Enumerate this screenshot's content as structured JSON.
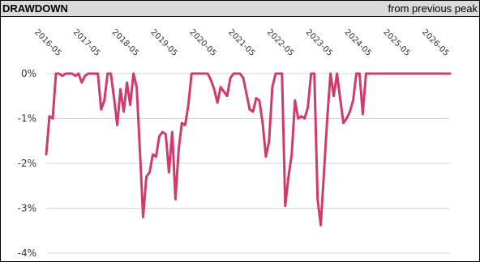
{
  "header": {
    "title": "DRAWDOWN",
    "subtitle": "from previous peak"
  },
  "colors": {
    "line": "#d03a6d",
    "header_bg": "#d9d9d9",
    "grid": "#d4d4d4"
  },
  "chart_data": {
    "type": "line",
    "title": "DRAWDOWN",
    "subtitle": "from previous peak",
    "xlabel": "",
    "ylabel": "",
    "x_start": "2016-05",
    "x_end": "2026-10",
    "x_ticks": [
      "2016-05",
      "2017-05",
      "2018-05",
      "2019-05",
      "2020-05",
      "2021-05",
      "2022-05",
      "2023-05",
      "2024-05",
      "2025-05",
      "2026-05"
    ],
    "ylim": [
      -4,
      0
    ],
    "y_ticks": [
      0,
      -1,
      -2,
      -3,
      -4
    ],
    "y_tick_labels": [
      "0%",
      "-1%",
      "-2%",
      "-3%",
      "-4%"
    ],
    "grid": true,
    "legend": "none",
    "series": [
      {
        "x": [
          "2016-05",
          "2016-06",
          "2016-07",
          "2016-08",
          "2016-09",
          "2016-10",
          "2016-11",
          "2016-12",
          "2017-01",
          "2017-02",
          "2017-03",
          "2017-04",
          "2017-05",
          "2017-06",
          "2017-07",
          "2017-08",
          "2017-09",
          "2017-10",
          "2017-11",
          "2017-12",
          "2018-01",
          "2018-02",
          "2018-03",
          "2018-04",
          "2018-05",
          "2018-06",
          "2018-07",
          "2018-08",
          "2018-09",
          "2018-10",
          "2018-11",
          "2018-12",
          "2019-01",
          "2019-02",
          "2019-03",
          "2019-04",
          "2019-05",
          "2019-06",
          "2019-07",
          "2019-08",
          "2019-09",
          "2019-10",
          "2019-11",
          "2019-12",
          "2020-01",
          "2020-02",
          "2020-03",
          "2020-04",
          "2020-05",
          "2020-06",
          "2020-07",
          "2020-08",
          "2020-09",
          "2020-10",
          "2020-11",
          "2020-12",
          "2021-01",
          "2021-02",
          "2021-03",
          "2021-04",
          "2021-05",
          "2021-06",
          "2021-07",
          "2021-08",
          "2021-09",
          "2021-10",
          "2021-11",
          "2021-12",
          "2022-01",
          "2022-02",
          "2022-03",
          "2022-04",
          "2022-05",
          "2022-06",
          "2022-07",
          "2022-08",
          "2022-09",
          "2022-10",
          "2022-11",
          "2022-12",
          "2023-01",
          "2023-02",
          "2023-03",
          "2023-04",
          "2023-05",
          "2023-06",
          "2023-07",
          "2023-08",
          "2023-09",
          "2023-10",
          "2023-11",
          "2023-12",
          "2024-01",
          "2024-02",
          "2024-03",
          "2024-04",
          "2024-05",
          "2024-06",
          "2024-07",
          "2024-08",
          "2024-09",
          "2024-10",
          "2024-11",
          "2024-12",
          "2025-01",
          "2025-06",
          "2026-01",
          "2026-10"
        ],
        "values": [
          -1.8,
          -0.95,
          -1.0,
          0,
          0,
          -0.05,
          0,
          0,
          0,
          -0.05,
          0,
          -0.2,
          -0.05,
          0,
          0,
          0,
          0,
          -0.8,
          -0.6,
          0,
          0,
          -0.55,
          -1.15,
          -0.35,
          -0.85,
          -0.2,
          -0.7,
          0,
          -0.3,
          -1.7,
          -3.2,
          -2.3,
          -2.2,
          -1.8,
          -1.85,
          -1.4,
          -1.3,
          -1.35,
          -2.2,
          -1.3,
          -2.8,
          -1.7,
          -1.1,
          -1.15,
          -0.7,
          0,
          0,
          0,
          0,
          0,
          0,
          -0.15,
          -0.35,
          -0.65,
          -0.3,
          -0.4,
          -0.5,
          -0.1,
          0,
          0,
          0,
          -0.1,
          -0.45,
          -0.8,
          -0.85,
          -0.55,
          -0.6,
          -1.1,
          -1.85,
          -1.5,
          -0.3,
          0,
          0,
          0,
          -2.95,
          -2.3,
          -1.8,
          -0.6,
          -1.0,
          -0.95,
          -1.0,
          -0.75,
          0,
          0,
          -2.8,
          -3.38,
          -2.2,
          -1.0,
          0,
          -0.5,
          0,
          -0.55,
          -1.1,
          -1.0,
          -0.85,
          -0.6,
          0,
          0,
          -0.9,
          0,
          0,
          0,
          0,
          0,
          0,
          0,
          0,
          0
        ]
      }
    ]
  }
}
